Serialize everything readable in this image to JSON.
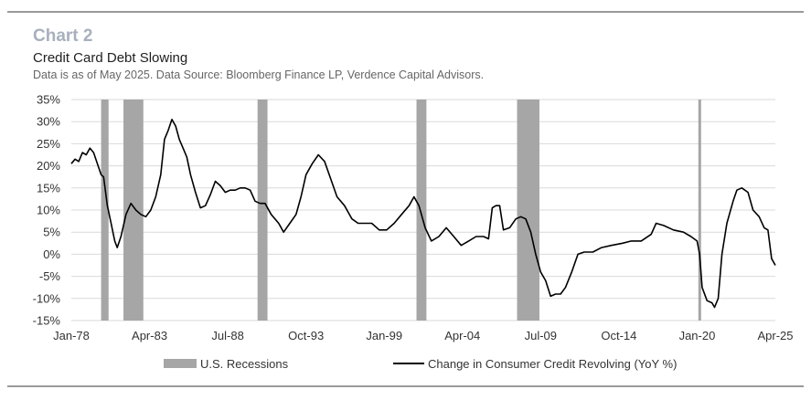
{
  "header": {
    "label": "Chart 2",
    "title": "Credit Card Debt Slowing",
    "subtitle": "Data is as of May 2025. Data Source: Bloomberg Finance LP, Verdence Capital Advisors."
  },
  "colors": {
    "line": "#000000",
    "recession": "#a6a6a6",
    "grid": "#d9d9d9",
    "label_gray": "#a8b0bd"
  },
  "chart_data": {
    "type": "line",
    "title": "Credit Card Debt Slowing",
    "x_range": [
      "1978-01",
      "2025-04"
    ],
    "x_ticks": [
      "Jan-78",
      "Apr-83",
      "Jul-88",
      "Oct-93",
      "Jan-99",
      "Apr-04",
      "Jul-09",
      "Oct-14",
      "Jan-20",
      "Apr-25"
    ],
    "y_range": [
      -15,
      35
    ],
    "y_ticks": [
      "-15%",
      "-10%",
      "-5%",
      "0%",
      "5%",
      "10%",
      "15%",
      "20%",
      "25%",
      "30%",
      "35%"
    ],
    "y_unit": "%",
    "grid": true,
    "legend_position": "bottom",
    "recessions": [
      {
        "start": "1980-01",
        "end": "1980-07"
      },
      {
        "start": "1981-07",
        "end": "1982-11"
      },
      {
        "start": "1990-07",
        "end": "1991-03"
      },
      {
        "start": "2001-03",
        "end": "2001-11"
      },
      {
        "start": "2007-12",
        "end": "2009-06"
      },
      {
        "start": "2020-02",
        "end": "2020-04"
      }
    ],
    "series": [
      {
        "name": "Change in Consumer Credit Revolving (YoY %)",
        "points": [
          [
            "1978-01",
            20.5
          ],
          [
            "1978-04",
            21.5
          ],
          [
            "1978-07",
            21
          ],
          [
            "1978-10",
            23
          ],
          [
            "1979-01",
            22.5
          ],
          [
            "1979-04",
            24
          ],
          [
            "1979-07",
            23
          ],
          [
            "1979-10",
            20.5
          ],
          [
            "1980-01",
            18
          ],
          [
            "1980-03",
            17.5
          ],
          [
            "1980-06",
            11
          ],
          [
            "1980-09",
            7
          ],
          [
            "1980-12",
            3
          ],
          [
            "1981-02",
            1.5
          ],
          [
            "1981-05",
            4
          ],
          [
            "1981-09",
            9
          ],
          [
            "1982-01",
            11.5
          ],
          [
            "1982-05",
            10
          ],
          [
            "1982-09",
            9
          ],
          [
            "1983-01",
            8.5
          ],
          [
            "1983-05",
            10
          ],
          [
            "1983-09",
            13
          ],
          [
            "1984-01",
            18
          ],
          [
            "1984-04",
            26
          ],
          [
            "1984-07",
            28
          ],
          [
            "1984-10",
            30.5
          ],
          [
            "1985-01",
            29
          ],
          [
            "1985-04",
            26
          ],
          [
            "1985-07",
            24
          ],
          [
            "1985-10",
            22
          ],
          [
            "1986-01",
            18
          ],
          [
            "1986-05",
            14
          ],
          [
            "1986-09",
            10.5
          ],
          [
            "1987-01",
            11
          ],
          [
            "1987-05",
            13.5
          ],
          [
            "1987-09",
            16.5
          ],
          [
            "1988-01",
            15.5
          ],
          [
            "1988-05",
            14
          ],
          [
            "1988-09",
            14.5
          ],
          [
            "1989-01",
            14.5
          ],
          [
            "1989-05",
            15
          ],
          [
            "1989-09",
            15
          ],
          [
            "1990-01",
            14.5
          ],
          [
            "1990-05",
            12
          ],
          [
            "1990-09",
            11.5
          ],
          [
            "1991-01",
            11.5
          ],
          [
            "1991-06",
            9
          ],
          [
            "1991-12",
            7
          ],
          [
            "1992-04",
            5
          ],
          [
            "1992-09",
            7
          ],
          [
            "1993-02",
            9
          ],
          [
            "1993-06",
            13
          ],
          [
            "1993-10",
            18
          ],
          [
            "1994-03",
            20.5
          ],
          [
            "1994-08",
            22.5
          ],
          [
            "1995-01",
            21
          ],
          [
            "1995-06",
            17
          ],
          [
            "1995-11",
            13
          ],
          [
            "1996-05",
            11
          ],
          [
            "1996-11",
            8
          ],
          [
            "1997-04",
            7
          ],
          [
            "1997-09",
            7
          ],
          [
            "1998-03",
            7
          ],
          [
            "1998-09",
            5.5
          ],
          [
            "1999-03",
            5.5
          ],
          [
            "1999-09",
            7
          ],
          [
            "2000-03",
            9
          ],
          [
            "2000-09",
            11
          ],
          [
            "2001-01",
            13
          ],
          [
            "2001-05",
            11
          ],
          [
            "2001-10",
            6
          ],
          [
            "2002-03",
            3
          ],
          [
            "2002-09",
            4
          ],
          [
            "2003-03",
            6
          ],
          [
            "2003-09",
            4
          ],
          [
            "2004-03",
            2
          ],
          [
            "2004-09",
            3
          ],
          [
            "2005-03",
            4
          ],
          [
            "2005-09",
            4
          ],
          [
            "2006-01",
            3.5
          ],
          [
            "2006-04",
            10.5
          ],
          [
            "2006-07",
            11
          ],
          [
            "2006-10",
            11
          ],
          [
            "2007-01",
            5.5
          ],
          [
            "2007-06",
            6
          ],
          [
            "2007-11",
            8
          ],
          [
            "2008-03",
            8.5
          ],
          [
            "2008-07",
            8
          ],
          [
            "2008-11",
            5
          ],
          [
            "2009-03",
            0
          ],
          [
            "2009-07",
            -4
          ],
          [
            "2009-11",
            -6
          ],
          [
            "2010-03",
            -9.5
          ],
          [
            "2010-07",
            -9
          ],
          [
            "2010-11",
            -9
          ],
          [
            "2011-03",
            -7.5
          ],
          [
            "2011-08",
            -4
          ],
          [
            "2012-01",
            0
          ],
          [
            "2012-06",
            0.5
          ],
          [
            "2013-01",
            0.5
          ],
          [
            "2013-08",
            1.5
          ],
          [
            "2014-04",
            2
          ],
          [
            "2015-01",
            2.5
          ],
          [
            "2015-08",
            3
          ],
          [
            "2016-04",
            3
          ],
          [
            "2016-12",
            4.5
          ],
          [
            "2017-04",
            7
          ],
          [
            "2017-10",
            6.5
          ],
          [
            "2018-06",
            5.5
          ],
          [
            "2019-02",
            5
          ],
          [
            "2019-08",
            4
          ],
          [
            "2020-01",
            3
          ],
          [
            "2020-03",
            0
          ],
          [
            "2020-05",
            -7.5
          ],
          [
            "2020-09",
            -10.5
          ],
          [
            "2021-01",
            -11
          ],
          [
            "2021-03",
            -12
          ],
          [
            "2021-06",
            -10
          ],
          [
            "2021-09",
            0
          ],
          [
            "2022-01",
            7
          ],
          [
            "2022-06",
            12
          ],
          [
            "2022-09",
            14.5
          ],
          [
            "2023-01",
            15
          ],
          [
            "2023-06",
            14
          ],
          [
            "2023-10",
            10
          ],
          [
            "2024-03",
            8.5
          ],
          [
            "2024-07",
            6
          ],
          [
            "2024-10",
            5.5
          ],
          [
            "2025-01",
            -1
          ],
          [
            "2025-04",
            -2.5
          ]
        ]
      }
    ],
    "legend": [
      {
        "label": "U.S. Recessions",
        "kind": "bar"
      },
      {
        "label": "Change in Consumer Credit Revolving (YoY %)",
        "kind": "line"
      }
    ]
  }
}
